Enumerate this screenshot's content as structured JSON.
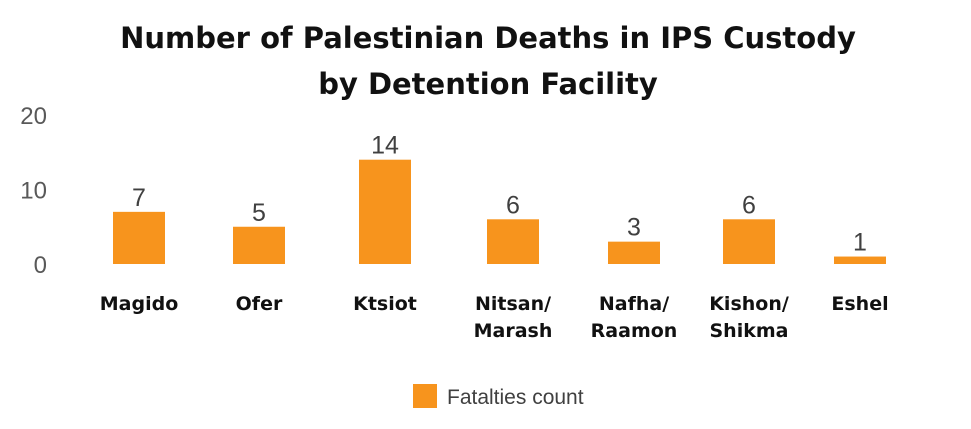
{
  "chart_data": {
    "type": "bar",
    "title_lines": [
      "Number of Palestinian Deaths in IPS Custody",
      "by Detention Facility"
    ],
    "categories": [
      [
        "Magido"
      ],
      [
        "Ofer"
      ],
      [
        "Ktsiot"
      ],
      [
        "Nitsan/",
        "Marash"
      ],
      [
        "Nafha/",
        "Raamon"
      ],
      [
        "Kishon/",
        "Shikma"
      ],
      [
        "Eshel"
      ]
    ],
    "series": [
      {
        "name": "Fatalties count",
        "values": [
          7,
          5,
          14,
          6,
          3,
          6,
          1
        ],
        "color": "#F7941D"
      }
    ],
    "yticks": [
      0,
      10,
      20
    ],
    "ylim": [
      0,
      20
    ],
    "grid": false,
    "legend_position": "bottom",
    "data_labels": true
  }
}
